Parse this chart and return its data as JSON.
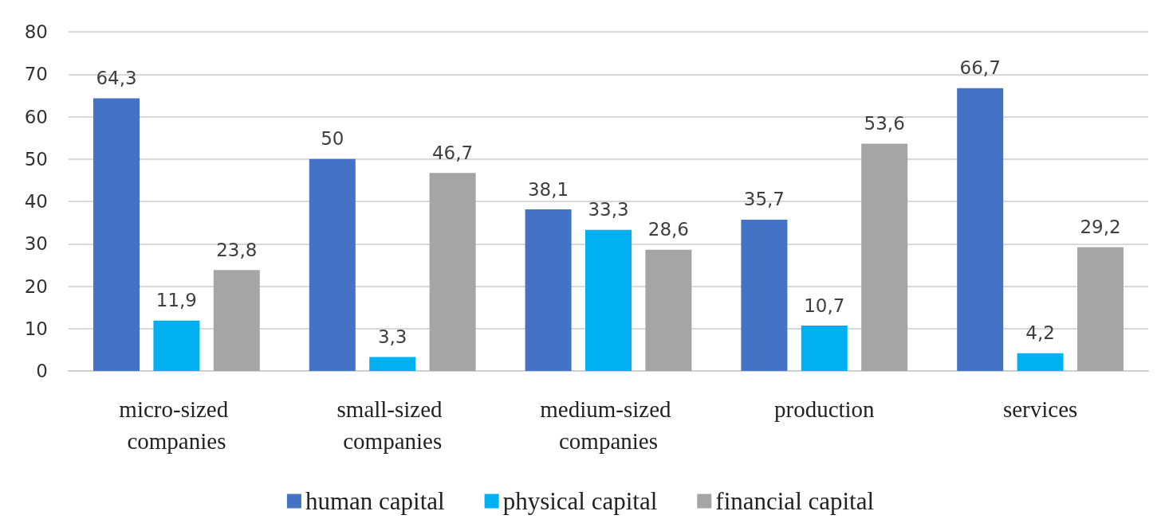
{
  "chart_data": {
    "type": "bar",
    "categories": [
      "micro-sized companies",
      "small-sized companies",
      "medium-sized companies",
      "production",
      "services"
    ],
    "series": [
      {
        "name": "human capital",
        "color": "#4472c4",
        "values": [
          64.3,
          50,
          38.1,
          35.7,
          66.7
        ],
        "value_labels": [
          "64,3",
          "50",
          "38,1",
          "35,7",
          "66,7"
        ]
      },
      {
        "name": "physical capital",
        "color": "#00b0f0",
        "values": [
          11.9,
          3.3,
          33.3,
          10.7,
          4.2
        ],
        "value_labels": [
          "11,9",
          "3,3",
          "33,3",
          "10,7",
          "4,2"
        ]
      },
      {
        "name": "financial capital",
        "color": "#a5a5a5",
        "values": [
          23.8,
          46.7,
          28.6,
          53.6,
          29.2
        ],
        "value_labels": [
          "23,8",
          "46,7",
          "28,6",
          "53,6",
          "29,2"
        ]
      }
    ],
    "ylim": [
      0,
      80
    ],
    "yticks": [
      0,
      10,
      20,
      30,
      40,
      50,
      60,
      70,
      80
    ],
    "grid": true,
    "legend": "bottom"
  }
}
